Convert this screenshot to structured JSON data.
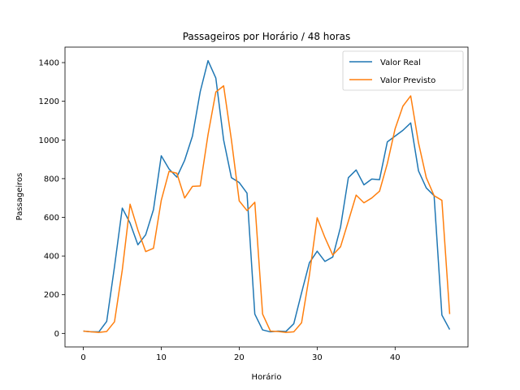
{
  "chart_data": {
    "type": "line",
    "title": "Passageiros por Horário / 48 horas",
    "xlabel": "Horário",
    "ylabel": "Passageiros",
    "xlim": [
      -2.35,
      49.35
    ],
    "ylim": [
      -70,
      1480
    ],
    "xticks": [
      0,
      10,
      20,
      30,
      40
    ],
    "yticks": [
      0,
      200,
      400,
      600,
      800,
      1000,
      1200,
      1400
    ],
    "grid": false,
    "legend_position": "top-right",
    "x": [
      0,
      1,
      2,
      3,
      4,
      5,
      6,
      7,
      8,
      9,
      10,
      11,
      12,
      13,
      14,
      15,
      16,
      17,
      18,
      19,
      20,
      21,
      22,
      23,
      24,
      25,
      26,
      27,
      28,
      29,
      30,
      31,
      32,
      33,
      34,
      35,
      36,
      37,
      38,
      39,
      40,
      41,
      42,
      43,
      44,
      45,
      46,
      47
    ],
    "series": [
      {
        "name": "Valor Real",
        "color": "#1f77b4",
        "values": [
          12,
          8,
          8,
          62,
          345,
          648,
          570,
          458,
          510,
          640,
          918,
          850,
          808,
          895,
          1020,
          1250,
          1410,
          1320,
          1000,
          805,
          780,
          725,
          100,
          18,
          8,
          12,
          10,
          50,
          210,
          365,
          425,
          372,
          395,
          550,
          805,
          845,
          768,
          798,
          795,
          990,
          1020,
          1050,
          1088,
          840,
          752,
          712,
          95,
          20
        ]
      },
      {
        "name": "Valor Previsto",
        "color": "#ff7f0e",
        "values": [
          12,
          8,
          5,
          10,
          60,
          328,
          668,
          535,
          423,
          440,
          688,
          838,
          828,
          700,
          760,
          762,
          1028,
          1248,
          1280,
          1000,
          685,
          635,
          678,
          100,
          12,
          10,
          5,
          8,
          55,
          300,
          598,
          495,
          405,
          448,
          580,
          715,
          675,
          700,
          735,
          878,
          1058,
          1175,
          1228,
          985,
          805,
          712,
          688,
          100
        ]
      }
    ]
  }
}
